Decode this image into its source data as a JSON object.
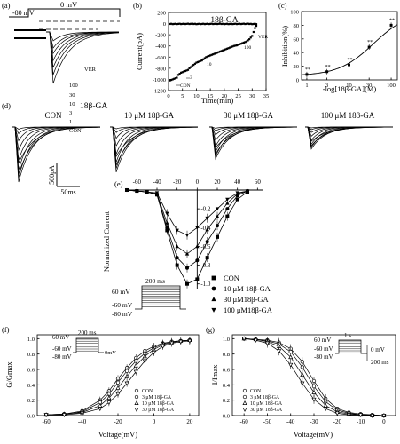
{
  "chart_data": [
    {
      "panel": "(a)",
      "type": "line",
      "labels": {
        "holding": "-80 mV",
        "step": "0 mV",
        "drug": "18β-GA",
        "traces": [
          "VER",
          "100",
          "30",
          "10",
          "3",
          "1",
          "CON"
        ]
      }
    },
    {
      "panel": "(b)",
      "type": "scatter",
      "title": "18β-GA",
      "xlabel": "Time(min)",
      "ylabel": "Current(pA)",
      "xlim": [
        0,
        35
      ],
      "ylim": [
        -1200,
        200
      ],
      "xticks": [
        0,
        5,
        10,
        15,
        20,
        25,
        30,
        35
      ],
      "yticks": [
        200,
        0,
        -200,
        -400,
        -600,
        -800,
        -1000,
        -1200
      ],
      "annotations": [
        "CON",
        "3",
        "10",
        "100",
        "VER"
      ],
      "series": [
        {
          "x": [
            0.5,
            1,
            1.5,
            2,
            2.5,
            3,
            3.5,
            4,
            4.5,
            5,
            5.5,
            6,
            6.5,
            7,
            7.5,
            8,
            8.5,
            9,
            9.5,
            10,
            10.5,
            11,
            11.5,
            12,
            12.5,
            13,
            13.5,
            14,
            14.5,
            15,
            15.5,
            16,
            16.5,
            17,
            17.5,
            18,
            18.5,
            19,
            19.5,
            20,
            20.5,
            21,
            21.5,
            22,
            22.5,
            23,
            23.5,
            24,
            24.5,
            25,
            25.5,
            26,
            26.5,
            27,
            27.5,
            28,
            28.5,
            29,
            29.5,
            30,
            30.5,
            31,
            31.5
          ],
          "y": [
            -1020,
            -1010,
            -1000,
            -990,
            -980,
            -970,
            -920,
            -900,
            -880,
            -870,
            -860,
            -850,
            -840,
            -830,
            -800,
            -780,
            -760,
            -740,
            -720,
            -700,
            -690,
            -680,
            -670,
            -660,
            -640,
            -620,
            -600,
            -590,
            -580,
            -570,
            -560,
            -550,
            -540,
            -530,
            -520,
            -510,
            -500,
            -490,
            -480,
            -470,
            -460,
            -450,
            -440,
            -430,
            -420,
            -410,
            -400,
            -395,
            -390,
            -380,
            -370,
            -360,
            -350,
            -340,
            -330,
            -320,
            -300,
            -280,
            -250,
            -220,
            -150,
            -80,
            -40
          ]
        }
      ]
    },
    {
      "panel": "(c)",
      "type": "scatter",
      "xlabel": "-log[18β-GA](M)",
      "ylabel": "Inhibition(%)",
      "xscale": "log",
      "xticks": [
        1,
        3,
        10,
        30,
        100
      ],
      "ylim": [
        0,
        100
      ],
      "yticks": [
        0,
        20,
        40,
        60,
        80,
        100
      ],
      "point_labels": [
        "**",
        "**",
        "**",
        "**",
        "**"
      ],
      "series": [
        {
          "x": [
            1,
            3,
            10,
            30,
            100
          ],
          "y": [
            8,
            12,
            22,
            48,
            80
          ]
        }
      ]
    },
    {
      "panel": "(d)",
      "type": "line",
      "groups": [
        "CON",
        "10 μM 18β-GA",
        "30 μM 18β-GA",
        "100 μM 18β-GA"
      ],
      "peak_fraction": [
        1.0,
        0.82,
        0.58,
        0.4
      ],
      "scalebar": {
        "current": "500pA",
        "time": "50ms"
      }
    },
    {
      "panel": "(e)",
      "type": "line",
      "ylabel": "Normalized Current",
      "xlim": [
        -70,
        65
      ],
      "ylim": [
        -1.05,
        0
      ],
      "xticks": [
        -60,
        -40,
        -20,
        0,
        20,
        40,
        60
      ],
      "yticks": [
        -0.2,
        -0.4,
        -0.6,
        -0.8,
        -1.0
      ],
      "x": [
        -80,
        -70,
        -60,
        -50,
        -40,
        -30,
        -20,
        -10,
        0,
        10,
        20,
        30,
        40,
        50
      ],
      "series": [
        {
          "name": "CON",
          "values": [
            0,
            0,
            -0.01,
            -0.02,
            -0.05,
            -0.43,
            -0.8,
            -1.0,
            -0.95,
            -0.72,
            -0.5,
            -0.28,
            -0.1,
            -0.02
          ]
        },
        {
          "name": "10 μM 18β-GA",
          "values": [
            0,
            0,
            -0.01,
            -0.02,
            -0.05,
            -0.4,
            -0.72,
            -0.83,
            -0.75,
            -0.55,
            -0.38,
            -0.2,
            -0.06,
            -0.01
          ]
        },
        {
          "name": "30 μM18β-GA",
          "values": [
            0,
            0,
            -0.01,
            -0.02,
            -0.04,
            -0.35,
            -0.6,
            -0.68,
            -0.6,
            -0.42,
            -0.28,
            -0.14,
            -0.04,
            -0.01
          ]
        },
        {
          "name": "100 μM18β-GA",
          "values": [
            0,
            0,
            -0.01,
            -0.02,
            -0.03,
            -0.25,
            -0.43,
            -0.48,
            -0.4,
            -0.3,
            -0.2,
            -0.1,
            -0.03,
            -0.01
          ]
        }
      ],
      "protocol": {
        "step": "60 mV",
        "hold_a": "-60 mV",
        "hold_b": "-80 mV",
        "duration": "200 ms"
      }
    },
    {
      "panel": "(f)",
      "type": "line",
      "xlabel": "Voltage(mV)",
      "ylabel": "G/Gmax",
      "xlim": [
        -65,
        25
      ],
      "ylim": [
        0,
        1.05
      ],
      "xticks": [
        -60,
        -40,
        -20,
        0,
        20
      ],
      "yticks": [
        0.0,
        0.2,
        0.4,
        0.6,
        0.8,
        1.0
      ],
      "x": [
        -60,
        -50,
        -40,
        -30,
        -25,
        -20,
        -15,
        -10,
        -5,
        0,
        5,
        10,
        15,
        20
      ],
      "series": [
        {
          "name": "CON",
          "values": [
            0.01,
            0.02,
            0.06,
            0.2,
            0.32,
            0.48,
            0.62,
            0.75,
            0.84,
            0.9,
            0.94,
            0.96,
            0.97,
            0.98
          ]
        },
        {
          "name": "3 μM 18β-GA",
          "values": [
            0.01,
            0.02,
            0.05,
            0.17,
            0.28,
            0.43,
            0.58,
            0.71,
            0.81,
            0.88,
            0.93,
            0.96,
            0.97,
            0.98
          ]
        },
        {
          "name": "10 μM 18β-GA",
          "values": [
            0.01,
            0.02,
            0.04,
            0.13,
            0.23,
            0.36,
            0.51,
            0.65,
            0.77,
            0.86,
            0.92,
            0.95,
            0.97,
            0.98
          ]
        },
        {
          "name": "30 μM 18β-GA",
          "values": [
            0.01,
            0.01,
            0.03,
            0.09,
            0.17,
            0.28,
            0.42,
            0.57,
            0.71,
            0.82,
            0.9,
            0.94,
            0.96,
            0.97
          ]
        }
      ],
      "protocol": {
        "step": "60 mV",
        "hold_a": "-60 mV",
        "hold_b": "-80 mV",
        "tail": "0mV",
        "duration": "200 ms"
      }
    },
    {
      "panel": "(g)",
      "type": "line",
      "xlabel": "Voltage(mV)",
      "ylabel": "I/Imax",
      "xlim": [
        -65,
        5
      ],
      "ylim": [
        0,
        1.05
      ],
      "xticks": [
        -60,
        -50,
        -40,
        -30,
        -20,
        -10,
        0
      ],
      "yticks": [
        0.0,
        0.2,
        0.4,
        0.6,
        0.8,
        1.0
      ],
      "x": [
        -60,
        -55,
        -50,
        -45,
        -40,
        -35,
        -30,
        -25,
        -20,
        -15,
        -10,
        -5,
        0
      ],
      "series": [
        {
          "name": "CON",
          "values": [
            1.0,
            0.99,
            0.98,
            0.95,
            0.87,
            0.7,
            0.45,
            0.22,
            0.09,
            0.04,
            0.02,
            0.01,
            0.0
          ]
        },
        {
          "name": "3 μM 18β-GA",
          "values": [
            1.0,
            0.99,
            0.97,
            0.93,
            0.83,
            0.63,
            0.38,
            0.18,
            0.07,
            0.03,
            0.01,
            0.01,
            0.0
          ]
        },
        {
          "name": "10 μM 18β-GA",
          "values": [
            1.0,
            0.99,
            0.96,
            0.9,
            0.76,
            0.53,
            0.3,
            0.13,
            0.05,
            0.02,
            0.01,
            0.0,
            0.0
          ]
        },
        {
          "name": "30 μM 18β-GA",
          "values": [
            1.0,
            0.98,
            0.94,
            0.84,
            0.66,
            0.42,
            0.21,
            0.09,
            0.03,
            0.01,
            0.01,
            0.0,
            0.0
          ]
        }
      ],
      "protocol": {
        "step": "60 mV",
        "hold_a": "-60 mV",
        "hold_b": "-80 mV",
        "tail": "0 mV",
        "duration_a": "1 s",
        "duration_b": "200 ms"
      }
    }
  ]
}
